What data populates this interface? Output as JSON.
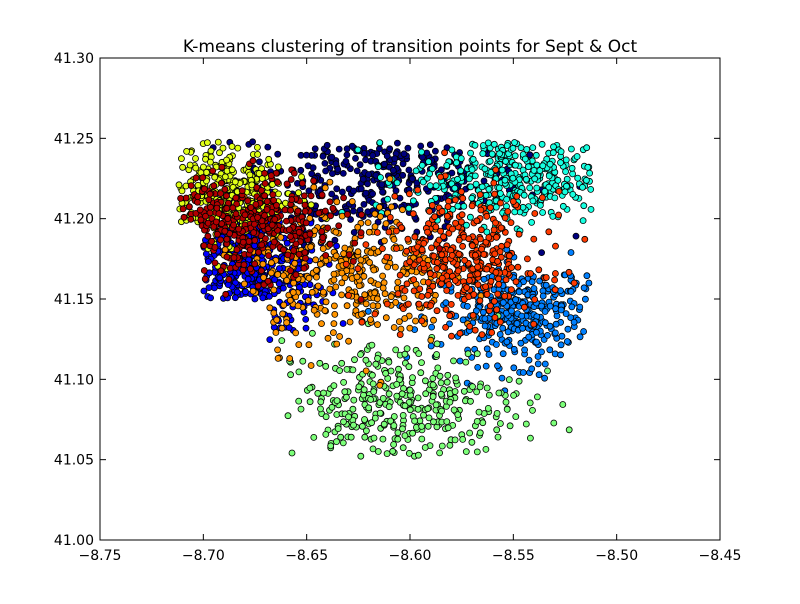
{
  "chart_data": {
    "type": "scatter",
    "title": "K-means clustering of transition points for Sept & Oct",
    "xlabel": "",
    "ylabel": "",
    "xlim": [
      -8.75,
      -8.45
    ],
    "ylim": [
      41.0,
      41.3
    ],
    "x_ticks": [
      -8.75,
      -8.7,
      -8.65,
      -8.6,
      -8.55,
      -8.5,
      -8.45
    ],
    "x_tick_labels": [
      "−8.75",
      "−8.70",
      "−8.65",
      "−8.60",
      "−8.55",
      "−8.50",
      "−8.45"
    ],
    "y_ticks": [
      41.0,
      41.05,
      41.1,
      41.15,
      41.2,
      41.25,
      41.3
    ],
    "y_tick_labels": [
      "41.00",
      "41.05",
      "41.10",
      "41.15",
      "41.20",
      "41.25",
      "41.30"
    ],
    "grid": false,
    "legend": "none",
    "marker_edge_color": "#000000",
    "cluster_colors": [
      "#00007f",
      "#0000ff",
      "#0080ff",
      "#17ffe0",
      "#7cff79",
      "#e0ff17",
      "#ff9400",
      "#ff3b00",
      "#b20000"
    ],
    "clusters": [
      {
        "centroid": [
          -8.615,
          41.225
        ],
        "spread": [
          0.035,
          0.018
        ]
      },
      {
        "centroid": [
          -8.68,
          41.165
        ],
        "spread": [
          0.02,
          0.018
        ]
      },
      {
        "centroid": [
          -8.545,
          41.14
        ],
        "spread": [
          0.02,
          0.015
        ]
      },
      {
        "centroid": [
          -8.55,
          41.225
        ],
        "spread": [
          0.025,
          0.014
        ]
      },
      {
        "centroid": [
          -8.605,
          41.085
        ],
        "spread": [
          0.03,
          0.02
        ]
      },
      {
        "centroid": [
          -8.69,
          41.215
        ],
        "spread": [
          0.015,
          0.015
        ]
      },
      {
        "centroid": [
          -8.63,
          41.165
        ],
        "spread": [
          0.025,
          0.022
        ]
      },
      {
        "centroid": [
          -8.575,
          41.175
        ],
        "spread": [
          0.02,
          0.02
        ]
      },
      {
        "centroid": [
          -8.68,
          41.195
        ],
        "spread": [
          0.022,
          0.015
        ]
      }
    ],
    "points_per_cluster": 360
  }
}
